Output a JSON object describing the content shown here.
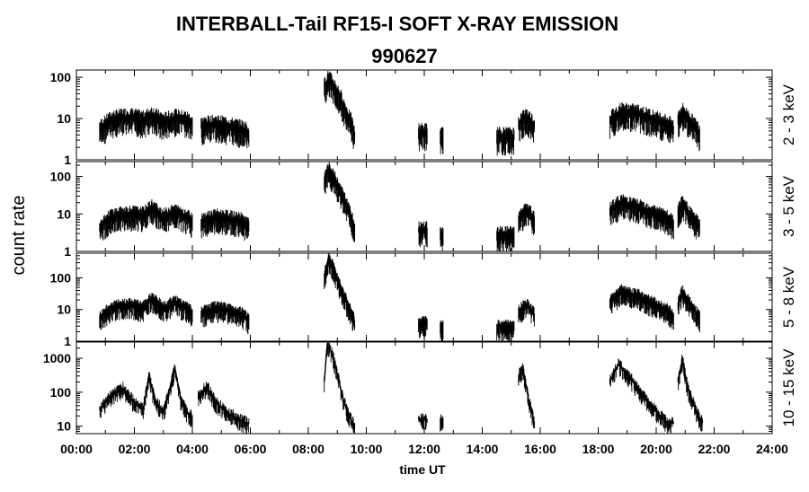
{
  "chart_data": {
    "type": "line",
    "title": "INTERBALL-Tail RF15-I SOFT X-RAY EMISSION",
    "subtitle": "990627",
    "xlabel": "time UT",
    "ylabel": "count rate",
    "xlim": [
      0,
      24
    ],
    "x_tick_labels": [
      "00:00",
      "02:00",
      "04:00",
      "06:00",
      "08:00",
      "10:00",
      "12:00",
      "14:00",
      "16:00",
      "18:00",
      "20:00",
      "22:00",
      "24:00"
    ],
    "yscale": "log",
    "grid": false,
    "panels": [
      {
        "band": "2 - 3 keV",
        "ylim": [
          1,
          150
        ],
        "y_tick_labels": [
          "1",
          "10",
          "100"
        ],
        "series": [
          {
            "x": [
              0.8,
              1.2,
              1.8,
              2.3,
              2.6,
              3.0,
              3.4,
              3.8,
              4.0
            ],
            "y": [
              6,
              10,
              12,
              10,
              13,
              9,
              11,
              10,
              8
            ]
          },
          {
            "x": [
              4.3,
              4.8,
              5.3,
              5.7,
              5.95
            ],
            "y": [
              7,
              8,
              7,
              6,
              5
            ]
          },
          {
            "x": [
              8.55,
              8.7,
              8.9,
              9.1,
              9.3,
              9.5,
              9.6
            ],
            "y": [
              60,
              100,
              60,
              35,
              15,
              8,
              4
            ]
          },
          {
            "x": [
              11.8,
              12.1
            ],
            "y": [
              5,
              5
            ]
          },
          {
            "x": [
              12.55,
              12.65
            ],
            "y": [
              4,
              4
            ]
          },
          {
            "x": [
              14.5,
              15.1
            ],
            "y": [
              4,
              4
            ]
          },
          {
            "x": [
              15.25,
              15.5,
              15.7,
              15.8
            ],
            "y": [
              8,
              12,
              9,
              7
            ]
          },
          {
            "x": [
              18.4,
              18.8,
              19.4,
              20.0,
              20.4,
              20.6
            ],
            "y": [
              10,
              16,
              14,
              10,
              8,
              6
            ]
          },
          {
            "x": [
              20.75,
              20.9,
              21.2,
              21.5
            ],
            "y": [
              10,
              16,
              9,
              5
            ]
          }
        ]
      },
      {
        "band": "3 - 5 keV",
        "ylim": [
          1,
          250
        ],
        "y_tick_labels": [
          "1",
          "10",
          "100"
        ],
        "series": [
          {
            "x": [
              0.8,
              1.2,
              1.8,
              2.3,
              2.6,
              3.0,
              3.4,
              3.8,
              4.0
            ],
            "y": [
              5,
              9,
              11,
              10,
              16,
              9,
              12,
              9,
              7
            ]
          },
          {
            "x": [
              4.3,
              4.8,
              5.3,
              5.7,
              5.95
            ],
            "y": [
              7,
              9,
              8,
              7,
              5
            ]
          },
          {
            "x": [
              8.55,
              8.7,
              8.9,
              9.1,
              9.3,
              9.5,
              9.6
            ],
            "y": [
              80,
              160,
              90,
              45,
              20,
              8,
              4
            ]
          },
          {
            "x": [
              11.8,
              12.1
            ],
            "y": [
              4,
              4
            ]
          },
          {
            "x": [
              12.55,
              12.65
            ],
            "y": [
              3,
              3
            ]
          },
          {
            "x": [
              14.5,
              15.1
            ],
            "y": [
              3,
              3
            ]
          },
          {
            "x": [
              15.25,
              15.5,
              15.7,
              15.8
            ],
            "y": [
              8,
              13,
              10,
              7
            ]
          },
          {
            "x": [
              18.4,
              18.8,
              19.4,
              20.0,
              20.4,
              20.6
            ],
            "y": [
              14,
              22,
              16,
              11,
              8,
              6
            ]
          },
          {
            "x": [
              20.75,
              20.9,
              21.2,
              21.5
            ],
            "y": [
              12,
              20,
              10,
              5
            ]
          }
        ]
      },
      {
        "band": "5 - 8 keV",
        "ylim": [
          1,
          600
        ],
        "y_tick_labels": [
          "1",
          "10",
          "100"
        ],
        "series": [
          {
            "x": [
              0.8,
              1.2,
              1.8,
              2.3,
              2.6,
              3.0,
              3.4,
              3.8,
              4.0
            ],
            "y": [
              6,
              12,
              16,
              12,
              24,
              12,
              18,
              12,
              8
            ]
          },
          {
            "x": [
              4.3,
              4.8,
              5.3,
              5.7,
              5.95
            ],
            "y": [
              8,
              12,
              10,
              8,
              5
            ]
          },
          {
            "x": [
              8.55,
              8.7,
              8.9,
              9.1,
              9.3,
              9.5,
              9.6
            ],
            "y": [
              120,
              450,
              180,
              60,
              20,
              8,
              4
            ]
          },
          {
            "x": [
              11.8,
              12.1
            ],
            "y": [
              4,
              4
            ]
          },
          {
            "x": [
              12.55,
              12.65
            ],
            "y": [
              3,
              3
            ]
          },
          {
            "x": [
              14.5,
              15.1
            ],
            "y": [
              3,
              3
            ]
          },
          {
            "x": [
              15.25,
              15.5,
              15.7,
              15.8
            ],
            "y": [
              9,
              16,
              10,
              7
            ]
          },
          {
            "x": [
              18.4,
              18.8,
              19.4,
              20.0,
              20.4,
              20.6
            ],
            "y": [
              18,
              40,
              28,
              15,
              10,
              6
            ]
          },
          {
            "x": [
              20.75,
              20.9,
              21.2,
              21.5
            ],
            "y": [
              15,
              40,
              14,
              6
            ]
          }
        ]
      },
      {
        "band": "10 - 15 keV",
        "ylim": [
          6,
          3000
        ],
        "y_tick_labels": [
          "10",
          "100",
          "1000"
        ],
        "series": [
          {
            "x": [
              0.8,
              1.2,
              1.6,
              2.0,
              2.3,
              2.5,
              2.7,
              3.0,
              3.4,
              3.6,
              3.8,
              4.0
            ],
            "y": [
              30,
              80,
              130,
              50,
              30,
              300,
              60,
              25,
              500,
              60,
              25,
              18
            ]
          },
          {
            "x": [
              4.2,
              4.5,
              4.8,
              5.2,
              5.6,
              5.95
            ],
            "y": [
              70,
              150,
              50,
              25,
              15,
              12
            ]
          },
          {
            "x": [
              8.55,
              8.65,
              8.8,
              9.0,
              9.2,
              9.4,
              9.6
            ],
            "y": [
              200,
              2500,
              1500,
              350,
              60,
              20,
              10
            ]
          },
          {
            "x": [
              11.8,
              12.1
            ],
            "y": [
              15,
              15
            ]
          },
          {
            "x": [
              12.55,
              12.65
            ],
            "y": [
              15,
              15
            ]
          },
          {
            "x": [
              15.25,
              15.4,
              15.6,
              15.8
            ],
            "y": [
              300,
              500,
              60,
              12
            ]
          },
          {
            "x": [
              18.4,
              18.7,
              19.2,
              19.8,
              20.4,
              20.6
            ],
            "y": [
              200,
              650,
              200,
              40,
              12,
              12
            ]
          },
          {
            "x": [
              20.75,
              20.9,
              21.1,
              21.4,
              21.6
            ],
            "y": [
              200,
              900,
              120,
              25,
              12
            ]
          }
        ]
      }
    ]
  }
}
